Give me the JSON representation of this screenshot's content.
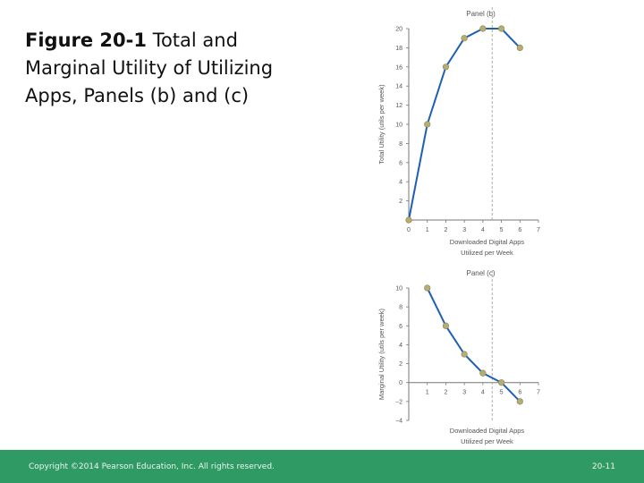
{
  "title": {
    "figure_label": "Figure 20-1",
    "text": "Total and Marginal Utility of Utilizing Apps, Panels (b) and (c)"
  },
  "chart_data": [
    {
      "type": "line",
      "title": "Panel (b)",
      "xlabel": "Downloaded Digital Apps Utilized per Week",
      "ylabel": "Total Utility (utils per week)",
      "x": [
        0,
        1,
        2,
        3,
        4,
        5,
        6
      ],
      "series": [
        {
          "values": [
            0,
            10,
            16,
            19,
            20,
            20,
            18
          ]
        }
      ],
      "xlim": [
        0,
        7
      ],
      "ylim": [
        0,
        20
      ],
      "xticks": [
        0,
        1,
        2,
        3,
        4,
        5,
        6,
        7
      ],
      "yticks": [
        2,
        4,
        6,
        8,
        10,
        12,
        14,
        16,
        18,
        20
      ],
      "reference_line_x": 4.5,
      "colors": {
        "line": "#1f5fb5",
        "marker": "#b5ad73",
        "reference": "#999999"
      }
    },
    {
      "type": "line",
      "title": "Panel (c)",
      "xlabel": "Downloaded Digital Apps Utilized per Week",
      "ylabel": "Marginal Utility (utils per week)",
      "x": [
        1,
        2,
        3,
        4,
        5,
        6
      ],
      "series": [
        {
          "values": [
            10,
            6,
            3,
            1,
            0,
            -2
          ]
        }
      ],
      "xlim": [
        0,
        7
      ],
      "ylim": [
        -4,
        10
      ],
      "xticks": [
        1,
        2,
        3,
        4,
        5,
        6,
        7
      ],
      "yticks": [
        -4,
        -2,
        0,
        2,
        4,
        6,
        8,
        10
      ],
      "reference_line_x": 4.5,
      "colors": {
        "line": "#1f5fb5",
        "marker": "#b5ad73",
        "reference": "#999999"
      }
    }
  ],
  "footer": {
    "copyright": "Copyright ©2014 Pearson Education, Inc. All rights reserved.",
    "page": "20-11"
  }
}
